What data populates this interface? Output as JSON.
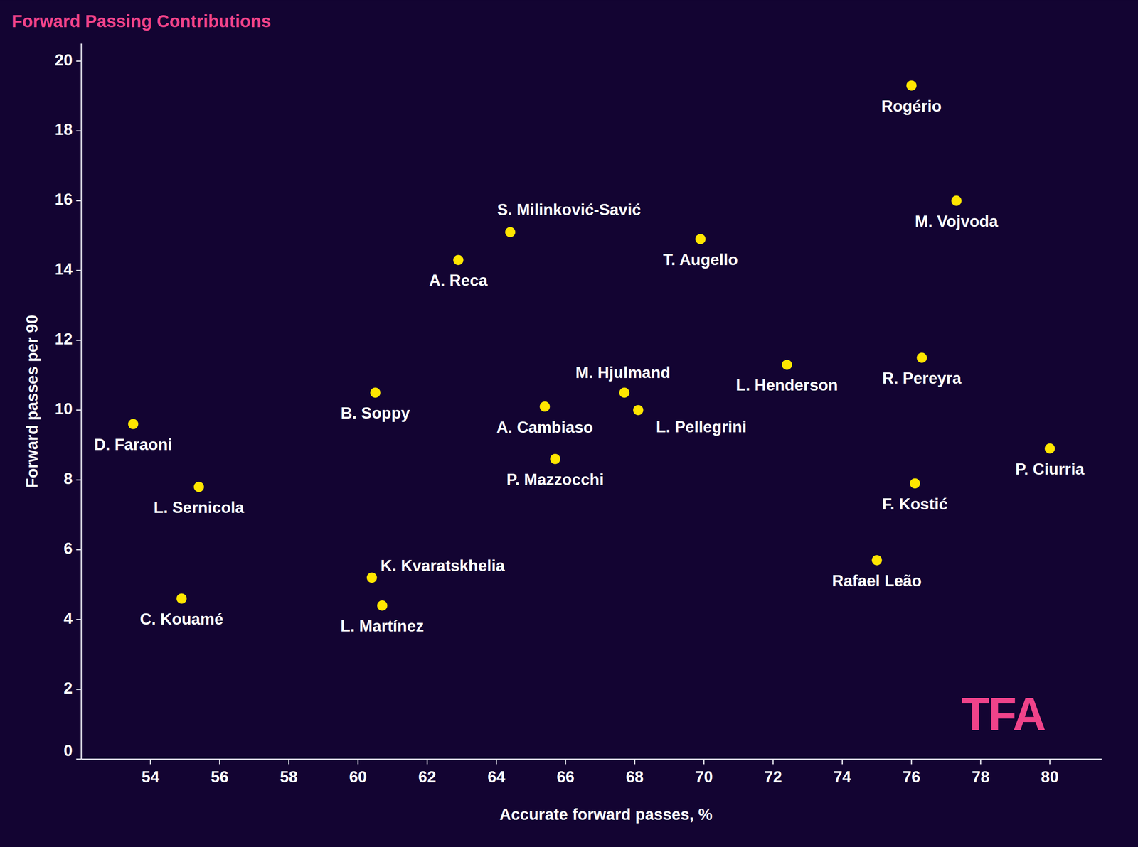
{
  "chart_data": {
    "type": "scatter",
    "title": "Forward Passing Contributions",
    "x_label": "Accurate forward passes, %",
    "y_label": "Forward passes per 90",
    "labels": [
      "Rogério",
      "M. Vojvoda",
      "S. Milinković-Savić",
      "A. Reca",
      "T. Augello",
      "M. Hjulmand",
      "L. Henderson",
      "R. Pereyra",
      "B. Soppy",
      "A. Cambiaso",
      "L. Pellegrini",
      "D. Faraoni",
      "P. Mazzocchi",
      "P. Ciurria",
      "L. Sernicola",
      "F. Kostić",
      "Rafael Leão",
      "K. Kvaratskhelia",
      "L. Martínez",
      "C. Kouamé"
    ],
    "x": [
      76.0,
      77.3,
      64.4,
      62.9,
      69.9,
      67.7,
      72.4,
      76.3,
      60.5,
      65.4,
      68.1,
      53.5,
      65.7,
      80.0,
      55.4,
      76.1,
      75.0,
      60.4,
      60.7,
      54.9
    ],
    "values": [
      19.3,
      16.0,
      15.1,
      14.3,
      14.9,
      10.5,
      11.3,
      11.5,
      10.5,
      10.1,
      10.0,
      9.6,
      8.6,
      8.9,
      7.8,
      7.9,
      5.7,
      5.2,
      4.4,
      4.6
    ],
    "color": "#ffe600",
    "marker": "circle",
    "xlim": [
      52,
      81.5
    ],
    "xticks": [
      54,
      56,
      58,
      60,
      62,
      64,
      66,
      68,
      70,
      72,
      74,
      76,
      78,
      80
    ],
    "ylim": [
      0,
      20.5
    ],
    "yticks": [
      0,
      2,
      4,
      6,
      8,
      10,
      12,
      14,
      16,
      18,
      20
    ],
    "grid": false,
    "annotations": [
      "TFA"
    ]
  }
}
